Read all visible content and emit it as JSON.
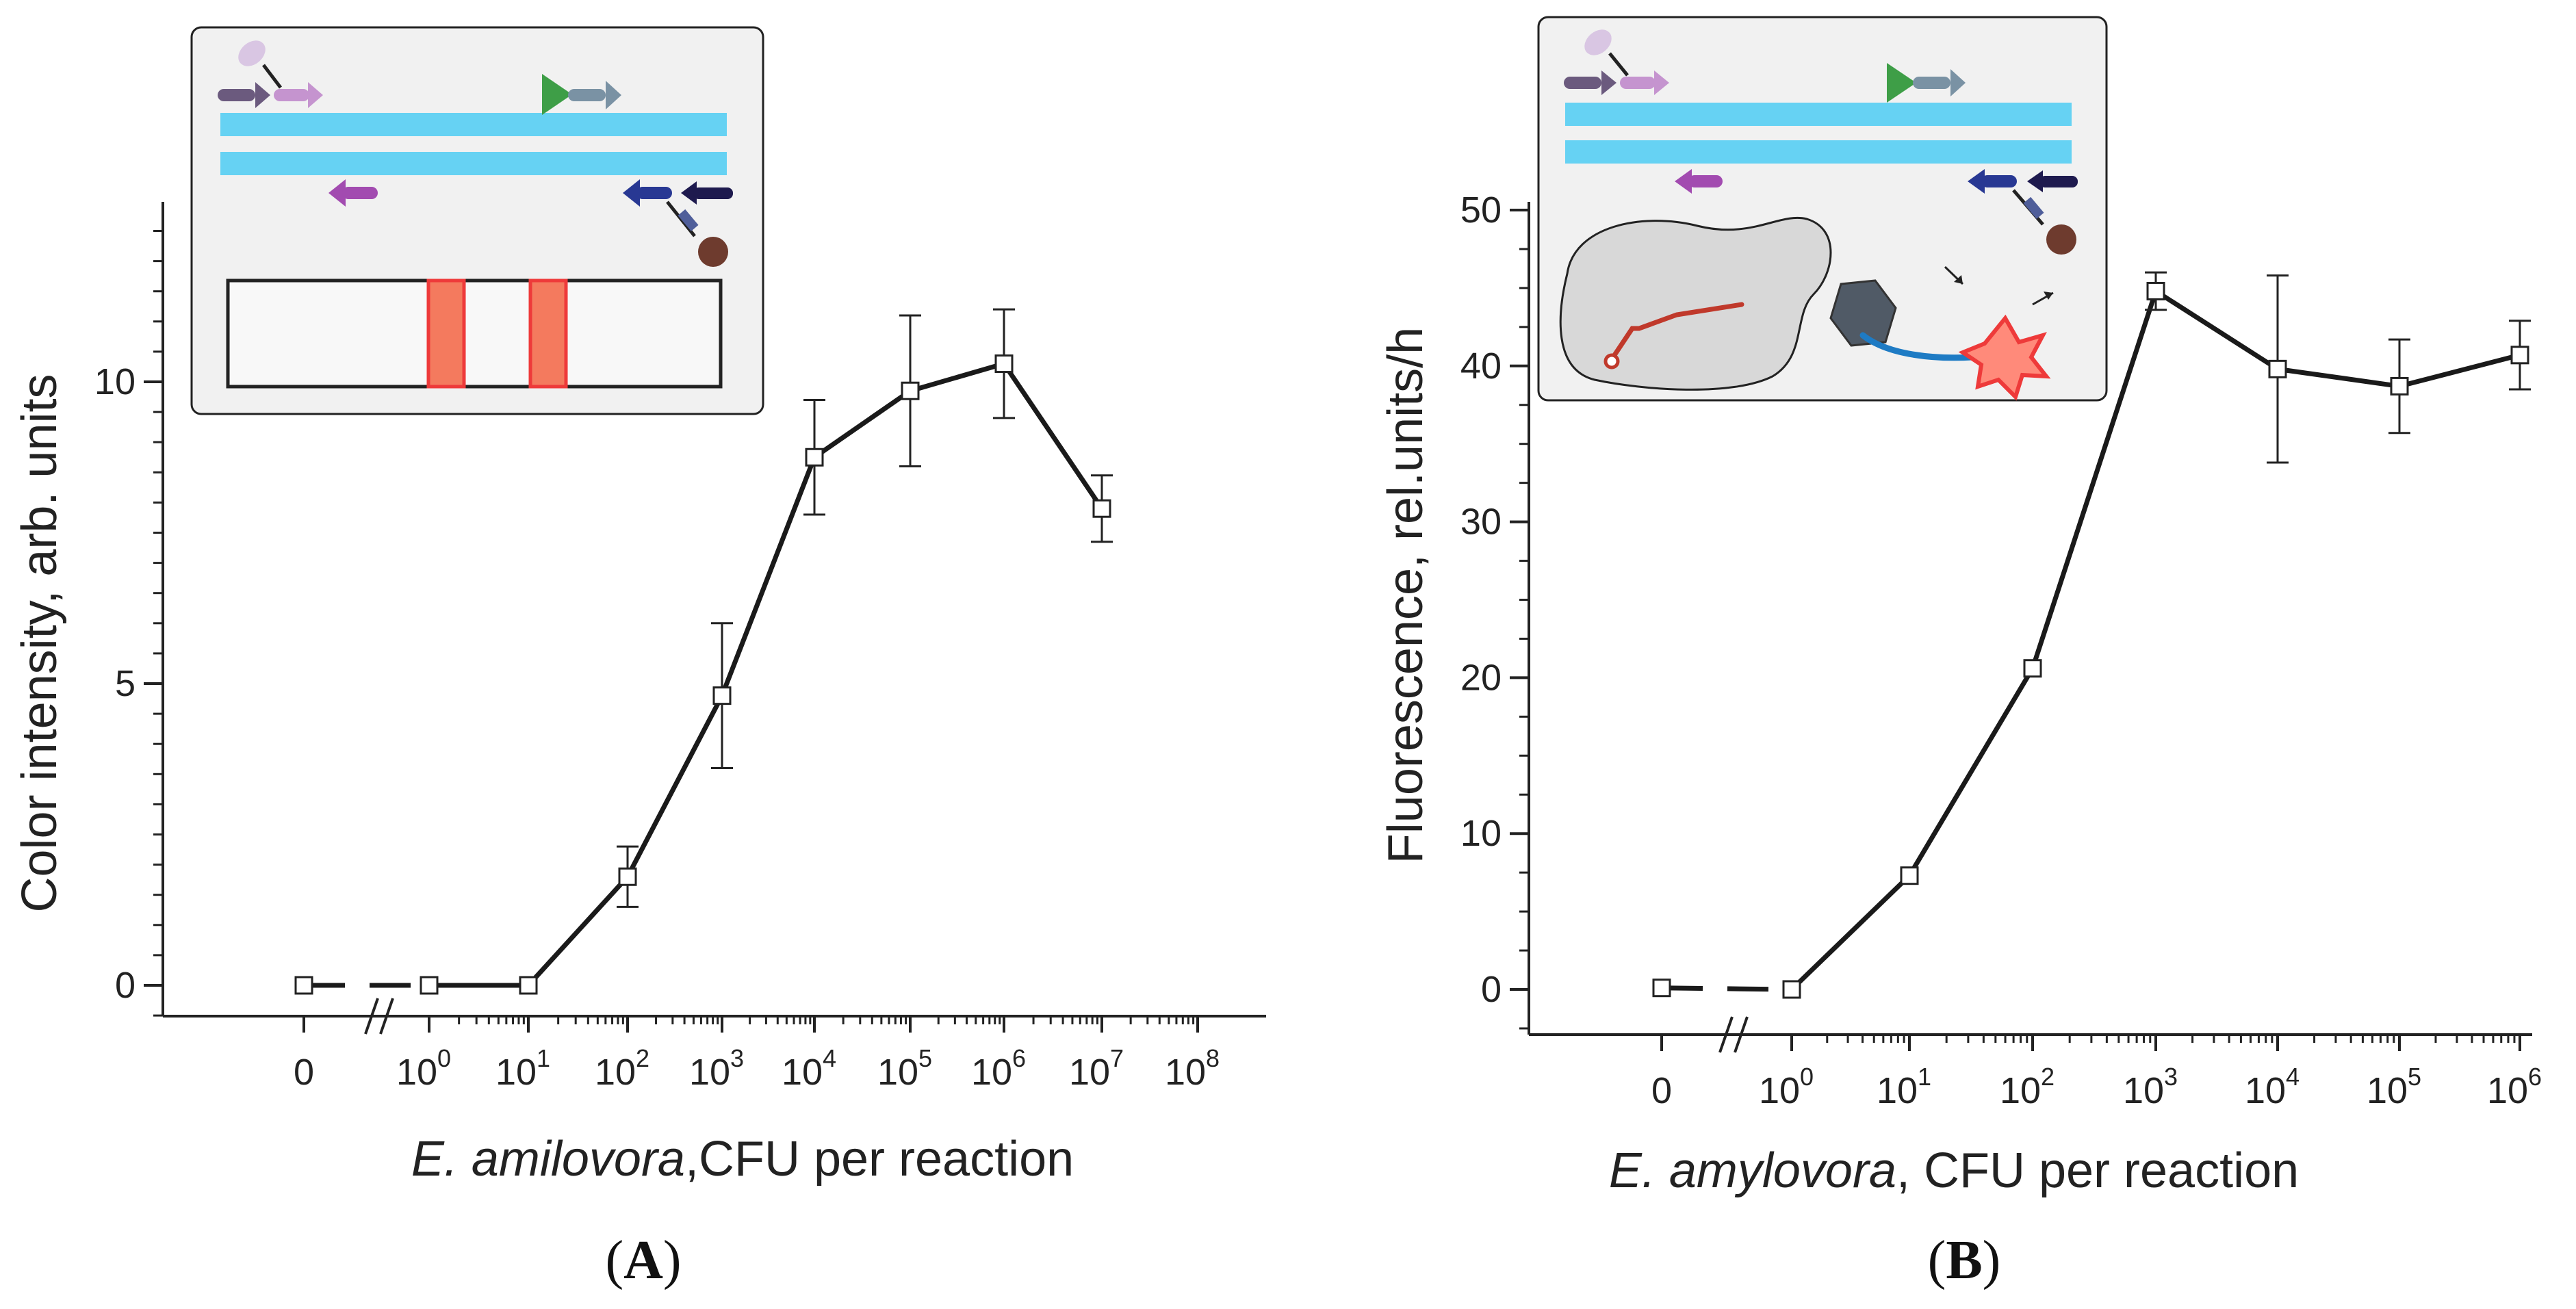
{
  "chart_data": [
    {
      "type": "line",
      "panel_label": "A",
      "x_tick_labels": [
        "0",
        "10",
        "10",
        "10",
        "10",
        "10",
        "10",
        "10",
        "10",
        "10"
      ],
      "x_tick_exponents": [
        "",
        "0",
        "1",
        "2",
        "3",
        "4",
        "5",
        "6",
        "7",
        "8"
      ],
      "xlabel_italic": "E. amilovora",
      "xlabel_rest": ",CFU per reaction",
      "ylabel": "Color intensity, arb. units",
      "y_ticks": [
        0,
        5,
        10
      ],
      "ylim": [
        -0.5,
        13
      ],
      "axis_break": "between 0 and 10^0",
      "series": [
        {
          "x": [
            "0",
            "10^0",
            "10^1",
            "10^2",
            "10^3",
            "10^4",
            "10^5",
            "10^6",
            "10^7"
          ],
          "values": [
            0,
            0,
            0,
            1.8,
            4.8,
            8.75,
            9.85,
            10.3,
            7.9
          ],
          "error": [
            0,
            0,
            0,
            0.5,
            1.2,
            0.95,
            1.25,
            0.9,
            0.55
          ],
          "marker": "open-square",
          "color": "#1a1a1a"
        }
      ],
      "inset": "schematic: DNA duplex with primers and lateral flow test strip with two red lines"
    },
    {
      "type": "line",
      "panel_label": "B",
      "x_tick_labels": [
        "0",
        "10",
        "10",
        "10",
        "10",
        "10",
        "10",
        "10"
      ],
      "x_tick_exponents": [
        "",
        "0",
        "1",
        "2",
        "3",
        "4",
        "5",
        "6"
      ],
      "xlabel_italic": "E. amylovora",
      "xlabel_rest": ", CFU per reaction",
      "ylabel": "Fluorescence, rel.units/h",
      "y_ticks": [
        0,
        10,
        20,
        30,
        40,
        50
      ],
      "ylim": [
        -3,
        57
      ],
      "axis_break": "between 0 and 10^0",
      "series": [
        {
          "x": [
            "0",
            "10^0",
            "10^1",
            "10^2",
            "10^3",
            "10^4",
            "10^5",
            "10^6"
          ],
          "values": [
            0.1,
            0,
            7.3,
            20.6,
            44.8,
            39.8,
            38.7,
            40.7
          ],
          "error": [
            0,
            0,
            0,
            0,
            1.2,
            6.0,
            3.0,
            2.2
          ],
          "marker": "open-square",
          "color": "#1a1a1a"
        }
      ],
      "inset": "schematic: DNA duplex with primers, polymerase, hexagonal quencher and fluorophore star"
    }
  ],
  "colors": {
    "dna_strand": "#66d2f3",
    "strip_line": "#f47a5e",
    "strip_line_border": "#ee3a3a",
    "primer_purple": "#a24bb0",
    "primer_navy": "#283893",
    "quencher": "#6e3b2e",
    "fluorophore": "#ff6b5a",
    "inset_bg": "#f1f1f1"
  }
}
